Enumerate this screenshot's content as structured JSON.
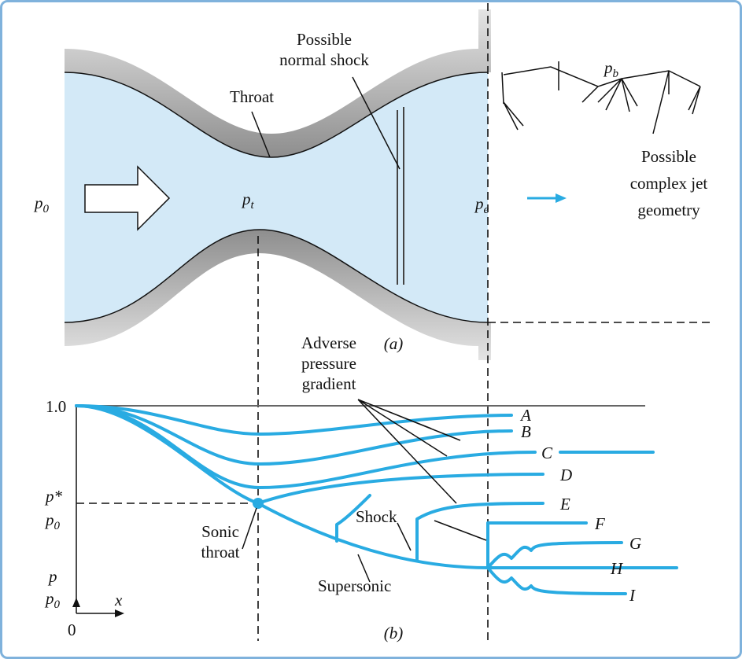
{
  "part_a": {
    "normal_shock_label": [
      "Possible",
      "normal shock"
    ],
    "throat_label": "Throat",
    "inlet_pressure": {
      "symbol": "p",
      "sub": "0"
    },
    "throat_pressure": {
      "symbol": "p",
      "sub": "t"
    },
    "exit_pressure": {
      "symbol": "p",
      "sub": "e"
    },
    "back_pressure": {
      "symbol": "p",
      "sub": "b"
    },
    "jet_label": [
      "Possible",
      "complex jet",
      "geometry"
    ],
    "caption": "(a)"
  },
  "part_b": {
    "gradient_label": [
      "Adverse",
      "pressure",
      "gradient"
    ],
    "y_top_label": "1.0",
    "critical_ratio": {
      "num": "p*",
      "den": {
        "symbol": "p",
        "sub": "0"
      }
    },
    "axis_ratio": {
      "num": "p",
      "den": {
        "symbol": "p",
        "sub": "0"
      }
    },
    "x_label": "x",
    "origin_label": "0",
    "sonic_label": [
      "Sonic",
      "throat"
    ],
    "shock_label": "Shock",
    "supersonic_label": "Supersonic",
    "curves": [
      "A",
      "B",
      "C",
      "D",
      "E",
      "F",
      "G",
      "H",
      "I"
    ],
    "caption": "(b)"
  }
}
